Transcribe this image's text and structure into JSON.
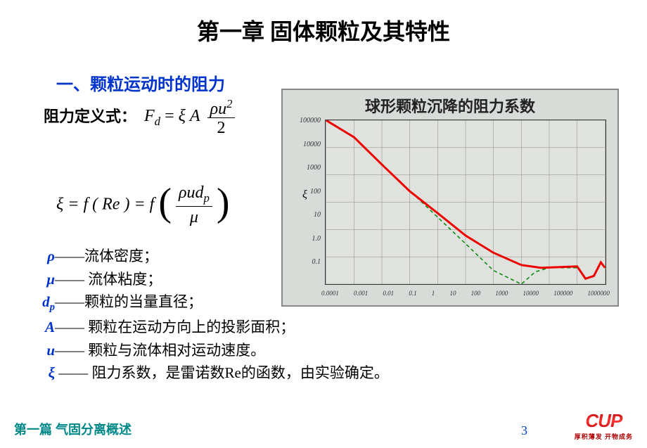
{
  "title": "第一章 固体颗粒及其特性",
  "section_heading": "一、颗粒运动时的阻力",
  "def_label": "阻力定义式：",
  "eq1": {
    "lhs": "F",
    "lhs_sub": "d",
    "eq": " = ",
    "xi": "ξ",
    "A": "A",
    "frac_num_rho": "ρ",
    "frac_num_u": "u",
    "frac_num_exp": "2",
    "frac_den": "2"
  },
  "eq2": {
    "xi": "ξ",
    "text1": " = f ( Re ) = f ",
    "frac_num": "ρud",
    "frac_num_sub": "p",
    "frac_den": "μ"
  },
  "definitions": [
    {
      "sym": "ρ",
      "dash": "——",
      "desc": "流体密度；"
    },
    {
      "sym": "μ",
      "dash": "—— ",
      "desc": "流体粘度；"
    },
    {
      "sym": "d",
      "sym_sub": "p",
      "dash": "——",
      "desc": "颗粒的当量直径；"
    },
    {
      "sym": "A",
      "dash": "—— ",
      "desc": "颗粒在运动方向上的投影面积；"
    },
    {
      "sym": "u",
      "dash": "—— ",
      "desc": "颗粒与流体相对运动速度。"
    },
    {
      "sym": "ξ",
      "dash": " —— ",
      "desc": "阻力系数，是雷诺数Re的函数，由实验确定。"
    }
  ],
  "chart": {
    "title": "球形颗粒沉降的阻力系数",
    "xi_symbol": "ξ",
    "y_ticks": [
      "100000",
      "10000",
      "1000",
      "100",
      "10",
      "1.0",
      "0.1"
    ],
    "x_ticks": [
      "0.0001",
      "0.001",
      "0.01",
      "0.1",
      "1",
      "10",
      "100",
      "1000",
      "10000",
      "100000",
      "1000000"
    ],
    "y_range_log": [
      -1,
      5
    ],
    "x_range_log": [
      -4,
      6
    ],
    "solid_curve_color": "#ee0000",
    "dashed_curve_color": "#008800",
    "grid_color": "#888888",
    "bg_color": "#e0e2de",
    "solid_curve": [
      [
        -4,
        5.0
      ],
      [
        -3,
        4.38
      ],
      [
        -2,
        3.38
      ],
      [
        -1,
        2.4
      ],
      [
        0,
        1.6
      ],
      [
        1,
        0.78
      ],
      [
        2,
        0.15
      ],
      [
        3,
        -0.3
      ],
      [
        3.7,
        -0.4
      ],
      [
        4.3,
        -0.38
      ],
      [
        5.0,
        -0.35
      ],
      [
        5.3,
        -0.8
      ],
      [
        5.6,
        -0.7
      ],
      [
        5.85,
        -0.2
      ],
      [
        6.0,
        -0.4
      ]
    ],
    "dashed_curve": [
      [
        -4,
        5.0
      ],
      [
        -3,
        4.38
      ],
      [
        -2,
        3.38
      ],
      [
        -1,
        2.42
      ],
      [
        0,
        1.45
      ],
      [
        1,
        0.48
      ],
      [
        2,
        -0.5
      ],
      [
        3,
        -1.0
      ],
      [
        3.5,
        -0.55
      ],
      [
        4.0,
        -0.4
      ],
      [
        4.5,
        -0.4
      ],
      [
        5.0,
        -0.4
      ]
    ]
  },
  "footer": {
    "left": "第一篇  气固分离概述",
    "page": "3",
    "logo_brand": "CUP",
    "logo_tag": "厚积薄发 开物成务"
  },
  "colors": {
    "heading_blue": "#0033cc",
    "teal": "#008888",
    "page_blue": "#0044dd",
    "logo_red": "#b00000"
  }
}
